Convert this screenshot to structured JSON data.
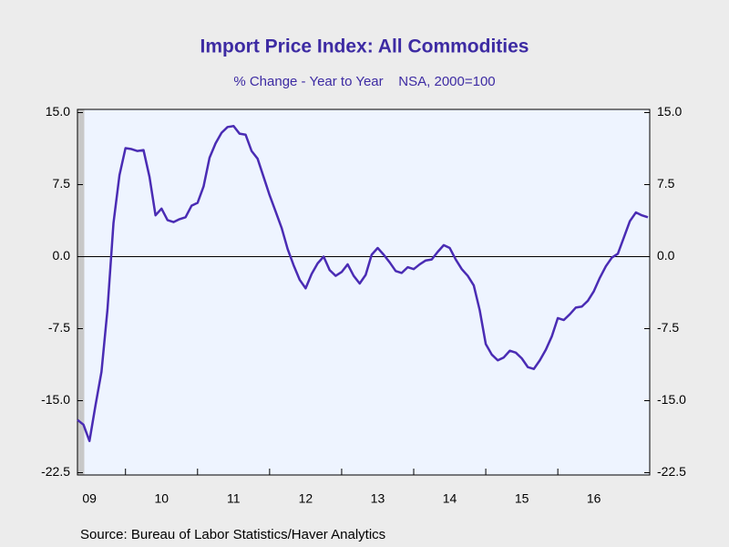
{
  "chart_data": {
    "type": "line",
    "title": "Import Price Index: All Commodities",
    "subtitle": "% Change - Year to Year    NSA, 2000=100",
    "source": "Source:  Bureau of Labor Statistics/Haver Analytics",
    "categories": [
      null,
      null,
      "09",
      null,
      null,
      null,
      null,
      null,
      null,
      null,
      null,
      null,
      null,
      null,
      "10",
      null,
      null,
      null,
      null,
      null,
      null,
      null,
      null,
      null,
      null,
      null,
      "11",
      null,
      null,
      null,
      null,
      null,
      null,
      null,
      null,
      null,
      null,
      null,
      "12",
      null,
      null,
      null,
      null,
      null,
      null,
      null,
      null,
      null,
      null,
      null,
      "13",
      null,
      null,
      null,
      null,
      null,
      null,
      null,
      null,
      null,
      null,
      null,
      "14",
      null,
      null,
      null,
      null,
      null,
      null,
      null,
      null,
      null,
      null,
      null,
      "15",
      null,
      null,
      null,
      null,
      null,
      null,
      null,
      null,
      null,
      null,
      null,
      "16",
      null,
      null,
      null,
      null,
      null,
      null,
      null,
      null,
      null
    ],
    "series": [
      {
        "color": "#4a2cb4",
        "values": [
          -17,
          -17.5,
          -19.2,
          -15.5,
          -12,
          -5.5,
          3.5,
          8.5,
          11.3,
          11.2,
          11.0,
          11.1,
          8.3,
          4.3,
          5.0,
          3.8,
          3.6,
          3.9,
          4.1,
          5.3,
          5.6,
          7.3,
          10.3,
          11.8,
          12.9,
          13.5,
          13.6,
          12.8,
          12.7,
          11.0,
          10.2,
          8.3,
          6.4,
          4.7,
          3.0,
          0.8,
          -0.9,
          -2.4,
          -3.3,
          -1.8,
          -0.7,
          0.0,
          -1.4,
          -2.0,
          -1.6,
          -0.8,
          -2.0,
          -2.8,
          -1.9,
          0.2,
          0.9,
          0.2,
          -0.6,
          -1.5,
          -1.7,
          -1.1,
          -1.3,
          -0.8,
          -0.4,
          -0.3,
          0.5,
          1.2,
          0.9,
          -0.3,
          -1.3,
          -2.0,
          -3.0,
          -5.6,
          -9.1,
          -10.2,
          -10.8,
          -10.5,
          -9.8,
          -10.0,
          -10.6,
          -11.5,
          -11.7,
          -10.8,
          -9.7,
          -8.3,
          -6.4,
          -6.6,
          -6.0,
          -5.3,
          -5.2,
          -4.6,
          -3.6,
          -2.2,
          -1.0,
          -0.1,
          0.3,
          2.0,
          3.7,
          4.6,
          4.3,
          4.1
        ]
      }
    ],
    "ylim": [
      -22.5,
      15
    ],
    "yticks": [
      {
        "value": 15,
        "label": "15.0"
      },
      {
        "value": 7.5,
        "label": "7.5"
      },
      {
        "value": 0,
        "label": "0.0"
      },
      {
        "value": -7.5,
        "label": "-7.5"
      },
      {
        "value": -15,
        "label": "-15.0"
      },
      {
        "value": -22.5,
        "label": "-22.5"
      }
    ],
    "zero_line": true
  }
}
